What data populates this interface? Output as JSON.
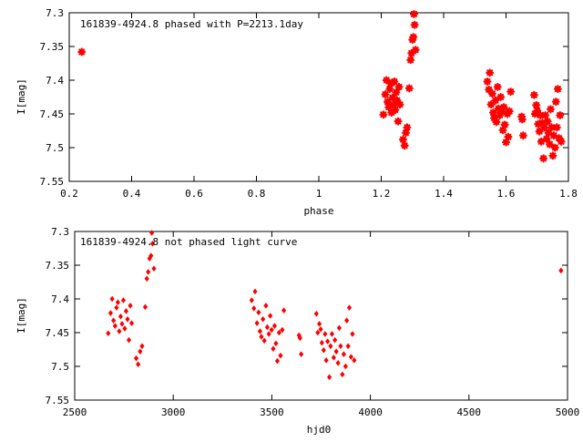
{
  "chart_data": [
    {
      "type": "scatter",
      "title": "161839-4924.8 phased with P=2213.1day",
      "xlabel": "phase",
      "ylabel": "I[mag]",
      "xlim": [
        0.2,
        1.8
      ],
      "ylim": [
        7.55,
        7.3
      ],
      "y_inverted": true,
      "xticks": [
        "0.2",
        "0.4",
        "0.6",
        "0.8",
        "1",
        "1.2",
        "1.4",
        "1.6",
        "1.8"
      ],
      "yticks": [
        "7.3",
        "7.35",
        "7.4",
        "7.45",
        "7.5",
        "7.55"
      ],
      "grid": false,
      "marker_color": "#ff0000",
      "series": [
        {
          "points": [
            [
              0.24,
              7.358
            ],
            [
              1.207,
              7.451
            ],
            [
              1.213,
              7.421
            ],
            [
              1.217,
              7.4
            ],
            [
              1.22,
              7.432
            ],
            [
              1.224,
              7.44
            ],
            [
              1.227,
              7.413
            ],
            [
              1.23,
              7.405
            ],
            [
              1.233,
              7.448
            ],
            [
              1.236,
              7.426
            ],
            [
              1.239,
              7.437
            ],
            [
              1.242,
              7.402
            ],
            [
              1.245,
              7.444
            ],
            [
              1.248,
              7.418
            ],
            [
              1.251,
              7.43
            ],
            [
              1.254,
              7.461
            ],
            [
              1.257,
              7.41
            ],
            [
              1.26,
              7.436
            ],
            [
              1.27,
              7.488
            ],
            [
              1.275,
              7.497
            ],
            [
              1.279,
              7.478
            ],
            [
              1.283,
              7.47
            ],
            [
              1.29,
              7.412
            ],
            [
              1.294,
              7.37
            ],
            [
              1.297,
              7.36
            ],
            [
              1.3,
              7.34
            ],
            [
              1.303,
              7.336
            ],
            [
              1.305,
              7.302
            ],
            [
              1.307,
              7.318
            ],
            [
              1.31,
              7.355
            ],
            [
              1.54,
              7.402
            ],
            [
              1.545,
              7.414
            ],
            [
              1.548,
              7.389
            ],
            [
              1.552,
              7.436
            ],
            [
              1.556,
              7.42
            ],
            [
              1.559,
              7.448
            ],
            [
              1.562,
              7.456
            ],
            [
              1.566,
              7.43
            ],
            [
              1.569,
              7.462
            ],
            [
              1.573,
              7.41
            ],
            [
              1.576,
              7.442
            ],
            [
              1.58,
              7.452
            ],
            [
              1.583,
              7.425
            ],
            [
              1.586,
              7.446
            ],
            [
              1.59,
              7.474
            ],
            [
              1.593,
              7.44
            ],
            [
              1.596,
              7.466
            ],
            [
              1.6,
              7.492
            ],
            [
              1.604,
              7.45
            ],
            [
              1.607,
              7.484
            ],
            [
              1.611,
              7.446
            ],
            [
              1.615,
              7.417
            ],
            [
              1.65,
              7.454
            ],
            [
              1.652,
              7.458
            ],
            [
              1.655,
              7.482
            ],
            [
              1.69,
              7.422
            ],
            [
              1.693,
              7.45
            ],
            [
              1.697,
              7.437
            ],
            [
              1.7,
              7.445
            ],
            [
              1.703,
              7.465
            ],
            [
              1.707,
              7.476
            ],
            [
              1.71,
              7.452
            ],
            [
              1.713,
              7.491
            ],
            [
              1.716,
              7.463
            ],
            [
              1.72,
              7.516
            ],
            [
              1.723,
              7.47
            ],
            [
              1.726,
              7.452
            ],
            [
              1.73,
              7.487
            ],
            [
              1.733,
              7.461
            ],
            [
              1.736,
              7.478
            ],
            [
              1.74,
              7.495
            ],
            [
              1.743,
              7.443
            ],
            [
              1.746,
              7.47
            ],
            [
              1.75,
              7.512
            ],
            [
              1.753,
              7.482
            ],
            [
              1.757,
              7.5
            ],
            [
              1.76,
              7.432
            ],
            [
              1.763,
              7.47
            ],
            [
              1.766,
              7.413
            ],
            [
              1.77,
              7.486
            ],
            [
              1.773,
              7.452
            ],
            [
              1.777,
              7.491
            ]
          ]
        }
      ]
    },
    {
      "type": "scatter",
      "title": "161839-4924.8 not phased light curve",
      "xlabel": "hjd0",
      "ylabel": "I[mag]",
      "xlim": [
        2500,
        5000
      ],
      "ylim": [
        7.55,
        7.3
      ],
      "y_inverted": true,
      "xticks": [
        "2500",
        "3000",
        "3500",
        "4000",
        "4500",
        "5000"
      ],
      "yticks": [
        "7.3",
        "7.35",
        "7.4",
        "7.45",
        "7.5",
        "7.55"
      ],
      "grid": false,
      "marker_color": "#ff0000",
      "series": [
        {
          "points": [
            [
              2670,
              7.451
            ],
            [
              2682,
              7.421
            ],
            [
              2690,
              7.4
            ],
            [
              2697,
              7.432
            ],
            [
              2705,
              7.44
            ],
            [
              2712,
              7.413
            ],
            [
              2719,
              7.405
            ],
            [
              2726,
              7.448
            ],
            [
              2733,
              7.426
            ],
            [
              2740,
              7.437
            ],
            [
              2747,
              7.402
            ],
            [
              2754,
              7.444
            ],
            [
              2761,
              7.418
            ],
            [
              2768,
              7.43
            ],
            [
              2775,
              7.461
            ],
            [
              2782,
              7.41
            ],
            [
              2789,
              7.436
            ],
            [
              2812,
              7.488
            ],
            [
              2822,
              7.497
            ],
            [
              2832,
              7.478
            ],
            [
              2842,
              7.47
            ],
            [
              2858,
              7.412
            ],
            [
              2866,
              7.37
            ],
            [
              2873,
              7.36
            ],
            [
              2880,
              7.34
            ],
            [
              2887,
              7.336
            ],
            [
              2891,
              7.302
            ],
            [
              2895,
              7.318
            ],
            [
              2902,
              7.355
            ],
            [
              3398,
              7.402
            ],
            [
              3409,
              7.414
            ],
            [
              3415,
              7.389
            ],
            [
              3425,
              7.436
            ],
            [
              3433,
              7.42
            ],
            [
              3440,
              7.448
            ],
            [
              3447,
              7.456
            ],
            [
              3455,
              7.43
            ],
            [
              3462,
              7.462
            ],
            [
              3470,
              7.41
            ],
            [
              3477,
              7.442
            ],
            [
              3485,
              7.452
            ],
            [
              3492,
              7.425
            ],
            [
              3499,
              7.446
            ],
            [
              3507,
              7.474
            ],
            [
              3514,
              7.44
            ],
            [
              3521,
              7.466
            ],
            [
              3528,
              7.492
            ],
            [
              3537,
              7.45
            ],
            [
              3544,
              7.484
            ],
            [
              3553,
              7.446
            ],
            [
              3561,
              7.417
            ],
            [
              3638,
              7.454
            ],
            [
              3643,
              7.458
            ],
            [
              3649,
              7.482
            ],
            [
              3726,
              7.422
            ],
            [
              3733,
              7.45
            ],
            [
              3741,
              7.437
            ],
            [
              3748,
              7.445
            ],
            [
              3754,
              7.465
            ],
            [
              3763,
              7.476
            ],
            [
              3770,
              7.452
            ],
            [
              3776,
              7.491
            ],
            [
              3783,
              7.463
            ],
            [
              3792,
              7.516
            ],
            [
              3798,
              7.47
            ],
            [
              3805,
              7.452
            ],
            [
              3814,
              7.487
            ],
            [
              3820,
              7.461
            ],
            [
              3827,
              7.478
            ],
            [
              3836,
              7.495
            ],
            [
              3842,
              7.443
            ],
            [
              3849,
              7.47
            ],
            [
              3858,
              7.512
            ],
            [
              3865,
              7.482
            ],
            [
              3874,
              7.5
            ],
            [
              3880,
              7.432
            ],
            [
              3887,
              7.47
            ],
            [
              3893,
              7.413
            ],
            [
              3902,
              7.486
            ],
            [
              3909,
              7.452
            ],
            [
              3918,
              7.491
            ],
            [
              4967,
              7.358
            ]
          ]
        }
      ]
    }
  ]
}
